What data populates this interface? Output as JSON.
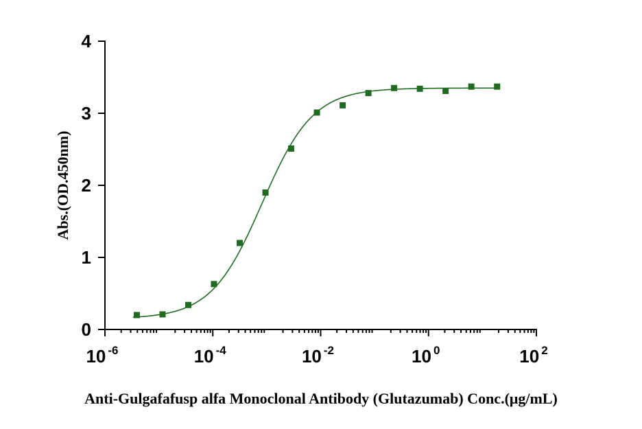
{
  "chart_data": {
    "type": "scatter",
    "title": "",
    "xlabel": "Anti-Gulgafafusp alfa Monoclonal Antibody (Glutazumab) Conc.(μg/mL)",
    "ylabel": "Abs.(OD.450nm)",
    "x_scale": "log",
    "xlim": [
      1e-06,
      100
    ],
    "ylim": [
      0,
      4
    ],
    "x_ticks": [
      {
        "base": "10",
        "exp": "-6",
        "value": 1e-06
      },
      {
        "base": "10",
        "exp": "-4",
        "value": 0.0001
      },
      {
        "base": "10",
        "exp": "-2",
        "value": 0.01
      },
      {
        "base": "10",
        "exp": "0",
        "value": 1
      },
      {
        "base": "10",
        "exp": "2",
        "value": 100
      }
    ],
    "y_ticks": [
      "0",
      "1",
      "2",
      "3",
      "4"
    ],
    "grid": false,
    "color": "#1f6b1f",
    "marker": "square",
    "fit": {
      "bottom": 0.15,
      "top": 3.35,
      "ec50": 0.00082,
      "hill": 0.92
    },
    "series": [
      {
        "x": [
          3.9e-06,
          1.17e-05,
          3.51e-05,
          0.000105,
          0.000316,
          0.000948,
          0.00284,
          0.00853,
          0.0256,
          0.0768,
          0.23,
          0.691,
          2.07,
          6.22,
          18.7
        ],
        "y": [
          0.2,
          0.21,
          0.34,
          0.63,
          1.2,
          1.9,
          2.51,
          3.01,
          3.11,
          3.28,
          3.35,
          3.34,
          3.31,
          3.37,
          3.37
        ]
      }
    ]
  }
}
